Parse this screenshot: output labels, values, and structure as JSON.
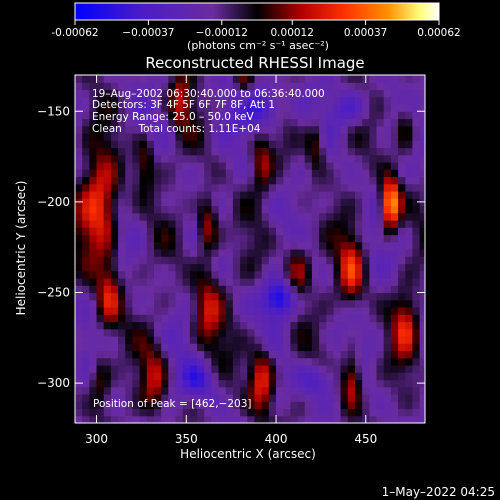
{
  "chart_data": {
    "type": "heatmap",
    "title": "Reconstructed RHESSI Image",
    "xlabel": "Heliocentric X (arcsec)",
    "ylabel": "Heliocentric Y (arcsec)",
    "xlim": [
      288,
      483
    ],
    "ylim": [
      -322,
      -130
    ],
    "x_ticks": [
      300,
      350,
      400,
      450
    ],
    "y_ticks": [
      -300,
      -250,
      -200,
      -150
    ],
    "x_tick_labels": [
      "300",
      "350",
      "400",
      "450"
    ],
    "y_tick_labels": [
      "−300",
      "−250",
      "−200",
      "−150"
    ],
    "colorbar": {
      "range": [
        -0.00062,
        0.00062
      ],
      "tick_values": [
        -0.00062,
        -0.00037,
        -0.00012,
        0.00012,
        0.00037,
        0.00062
      ],
      "tick_labels": [
        "-0.00062",
        "−0.00037",
        "−0.00012",
        "0.00012",
        "0.00037",
        "0.00062"
      ],
      "units_label": "(photons cm⁻² s⁻¹ asec⁻²)",
      "colors": [
        "#0000ff",
        "#5020c0",
        "#7030a0",
        "#000000",
        "#b00000",
        "#ff3000",
        "#ff9000",
        "#ffff80",
        "#ffffff"
      ]
    },
    "annotations": [
      "19–Aug–2002 06:30:40.000 to 06:36:40.000",
      "Detectors: 3F 4F 5F 6F 7F 8F, Att 1",
      "Energy Range: 25.0 – 50.0 keV",
      "Clean     Total counts: 1.11E+04"
    ],
    "peak_label": "Position of Peak = [462,−203]",
    "peak": {
      "x": 462,
      "y": -203
    },
    "footer_date": "1–May–2022 04:25"
  }
}
